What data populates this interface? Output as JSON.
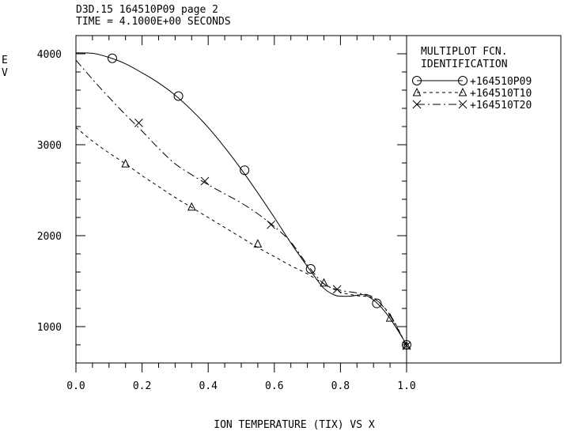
{
  "header": {
    "line1": "D3D.15 164510P09 page 2",
    "line2": "TIME = 4.1000E+00 SECONDS"
  },
  "legend": {
    "title_line1": "MULTIPLOT FCN.",
    "title_line2": "IDENTIFICATION"
  },
  "chart_data": {
    "type": "line",
    "title": "",
    "xlabel": "ION TEMPERATURE (TIX) VS X",
    "ylabel": [
      "E",
      "V"
    ],
    "xlim": [
      0.0,
      1.0
    ],
    "ylim": [
      600,
      4200
    ],
    "x_ticks": [
      0.0,
      0.2,
      0.4,
      0.6,
      0.8,
      1.0
    ],
    "x_tick_labels": [
      "0.0",
      "0.2",
      "0.4",
      "0.6",
      "0.8",
      "1.0"
    ],
    "y_ticks": [
      1000,
      2000,
      3000,
      4000
    ],
    "y_tick_labels": [
      "1000",
      "2000",
      "3000",
      "4000"
    ],
    "grid": false,
    "legend_position": "right-panel",
    "series": [
      {
        "name": "+164510P09",
        "marker": "circle",
        "linestyle": "solid",
        "color": "#000000",
        "curve": [
          [
            0.0,
            4010
          ],
          [
            0.05,
            4005
          ],
          [
            0.1,
            3960
          ],
          [
            0.15,
            3890
          ],
          [
            0.2,
            3790
          ],
          [
            0.25,
            3680
          ],
          [
            0.3,
            3545
          ],
          [
            0.35,
            3380
          ],
          [
            0.4,
            3190
          ],
          [
            0.45,
            2970
          ],
          [
            0.5,
            2730
          ],
          [
            0.55,
            2470
          ],
          [
            0.6,
            2200
          ],
          [
            0.65,
            1920
          ],
          [
            0.7,
            1660
          ],
          [
            0.72,
            1560
          ],
          [
            0.75,
            1420
          ],
          [
            0.78,
            1350
          ],
          [
            0.8,
            1335
          ],
          [
            0.83,
            1335
          ],
          [
            0.86,
            1350
          ],
          [
            0.88,
            1340
          ],
          [
            0.91,
            1260
          ],
          [
            0.94,
            1140
          ],
          [
            0.97,
            980
          ],
          [
            1.0,
            800
          ]
        ],
        "markers": [
          [
            0.11,
            3950
          ],
          [
            0.31,
            3535
          ],
          [
            0.51,
            2720
          ],
          [
            0.71,
            1635
          ],
          [
            0.91,
            1255
          ],
          [
            1.0,
            800
          ]
        ]
      },
      {
        "name": "+164510T10",
        "marker": "triangle",
        "linestyle": "dashed",
        "color": "#000000",
        "curve": [
          [
            0.0,
            3190
          ],
          [
            0.05,
            3040
          ],
          [
            0.1,
            2910
          ],
          [
            0.15,
            2790
          ],
          [
            0.2,
            2660
          ],
          [
            0.25,
            2540
          ],
          [
            0.3,
            2420
          ],
          [
            0.35,
            2310
          ],
          [
            0.4,
            2200
          ],
          [
            0.45,
            2090
          ],
          [
            0.5,
            1980
          ],
          [
            0.55,
            1870
          ],
          [
            0.6,
            1770
          ],
          [
            0.65,
            1670
          ],
          [
            0.7,
            1580
          ],
          [
            0.75,
            1470
          ],
          [
            0.8,
            1380
          ],
          [
            0.85,
            1340
          ],
          [
            0.9,
            1310
          ],
          [
            0.95,
            1130
          ],
          [
            1.0,
            790
          ]
        ],
        "markers": [
          [
            0.15,
            2790
          ],
          [
            0.35,
            2315
          ],
          [
            0.55,
            1910
          ],
          [
            0.75,
            1480
          ],
          [
            0.95,
            1095
          ],
          [
            1.0,
            790
          ]
        ]
      },
      {
        "name": "+164510T20",
        "marker": "x",
        "linestyle": "dashdot",
        "color": "#000000",
        "curve": [
          [
            0.0,
            3930
          ],
          [
            0.05,
            3720
          ],
          [
            0.1,
            3520
          ],
          [
            0.15,
            3330
          ],
          [
            0.2,
            3150
          ],
          [
            0.25,
            2960
          ],
          [
            0.3,
            2790
          ],
          [
            0.35,
            2670
          ],
          [
            0.4,
            2560
          ],
          [
            0.45,
            2460
          ],
          [
            0.5,
            2360
          ],
          [
            0.55,
            2240
          ],
          [
            0.6,
            2100
          ],
          [
            0.65,
            1930
          ],
          [
            0.7,
            1680
          ],
          [
            0.75,
            1470
          ],
          [
            0.8,
            1400
          ],
          [
            0.85,
            1370
          ],
          [
            0.9,
            1320
          ],
          [
            0.95,
            1120
          ],
          [
            1.0,
            790
          ]
        ],
        "markers": [
          [
            0.19,
            3240
          ],
          [
            0.39,
            2600
          ],
          [
            0.59,
            2120
          ],
          [
            0.79,
            1410
          ],
          [
            1.0,
            790
          ]
        ]
      }
    ]
  }
}
